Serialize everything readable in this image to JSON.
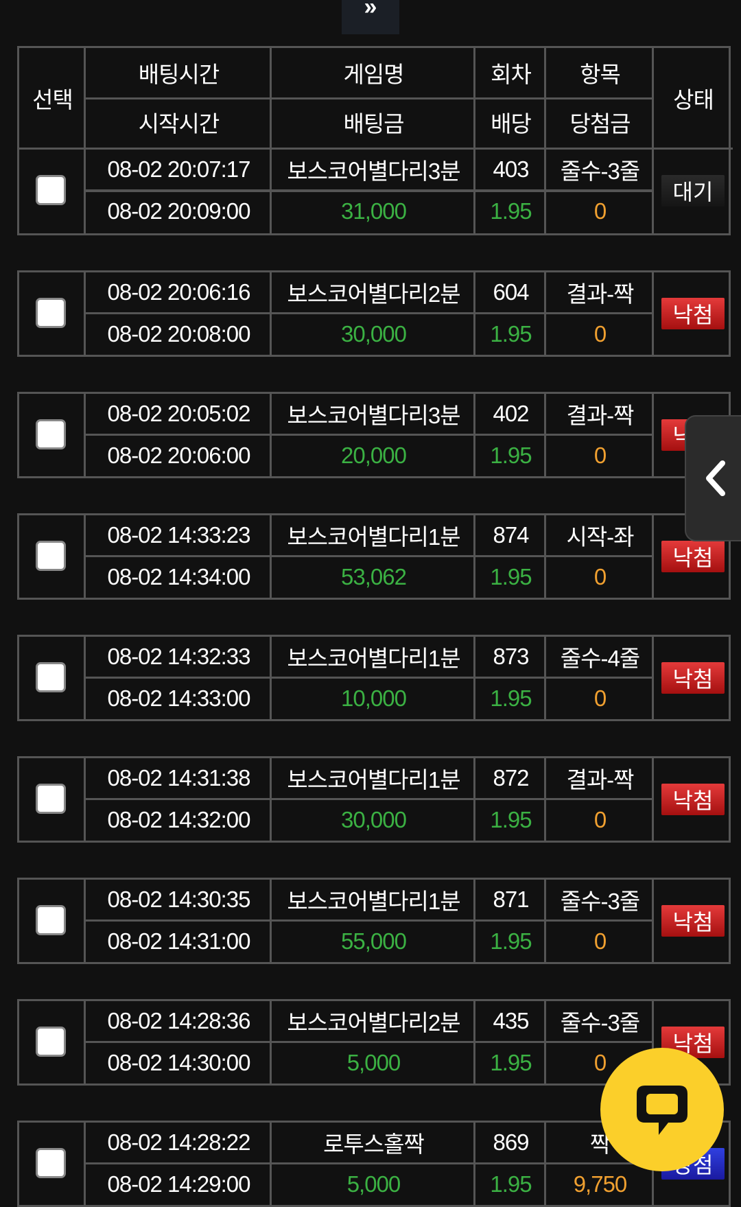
{
  "top_button": {
    "label": "»"
  },
  "header": {
    "select": "선택",
    "bet_time": "배팅시간",
    "start_time": "시작시간",
    "game_name": "게임명",
    "bet_amount": "배팅금",
    "round": "회차",
    "odds": "배당",
    "item": "항목",
    "winnings": "당첨금",
    "status": "상태"
  },
  "rows": [
    {
      "bet_time": "08-02 20:07:17",
      "start_time": "08-02 20:09:00",
      "game": "보스코어별다리3분",
      "amount": "31,000",
      "round": "403",
      "odds": "1.95",
      "item": "줄수-3줄",
      "win": "0",
      "status": "대기",
      "status_type": "wait"
    },
    {
      "bet_time": "08-02 20:06:16",
      "start_time": "08-02 20:08:00",
      "game": "보스코어별다리2분",
      "amount": "30,000",
      "round": "604",
      "odds": "1.95",
      "item": "결과-짝",
      "win": "0",
      "status": "낙첨",
      "status_type": "lose"
    },
    {
      "bet_time": "08-02 20:05:02",
      "start_time": "08-02 20:06:00",
      "game": "보스코어별다리3분",
      "amount": "20,000",
      "round": "402",
      "odds": "1.95",
      "item": "결과-짝",
      "win": "0",
      "status": "낙첨",
      "status_type": "lose"
    },
    {
      "bet_time": "08-02 14:33:23",
      "start_time": "08-02 14:34:00",
      "game": "보스코어별다리1분",
      "amount": "53,062",
      "round": "874",
      "odds": "1.95",
      "item": "시작-좌",
      "win": "0",
      "status": "낙첨",
      "status_type": "lose"
    },
    {
      "bet_time": "08-02 14:32:33",
      "start_time": "08-02 14:33:00",
      "game": "보스코어별다리1분",
      "amount": "10,000",
      "round": "873",
      "odds": "1.95",
      "item": "줄수-4줄",
      "win": "0",
      "status": "낙첨",
      "status_type": "lose"
    },
    {
      "bet_time": "08-02 14:31:38",
      "start_time": "08-02 14:32:00",
      "game": "보스코어별다리1분",
      "amount": "30,000",
      "round": "872",
      "odds": "1.95",
      "item": "결과-짝",
      "win": "0",
      "status": "낙첨",
      "status_type": "lose"
    },
    {
      "bet_time": "08-02 14:30:35",
      "start_time": "08-02 14:31:00",
      "game": "보스코어별다리1분",
      "amount": "55,000",
      "round": "871",
      "odds": "1.95",
      "item": "줄수-3줄",
      "win": "0",
      "status": "낙첨",
      "status_type": "lose"
    },
    {
      "bet_time": "08-02 14:28:36",
      "start_time": "08-02 14:30:00",
      "game": "보스코어별다리2분",
      "amount": "5,000",
      "round": "435",
      "odds": "1.95",
      "item": "줄수-3줄",
      "win": "0",
      "status": "낙첨",
      "status_type": "lose"
    },
    {
      "bet_time": "08-02 14:28:22",
      "start_time": "08-02 14:29:00",
      "game": "로투스홀짝",
      "amount": "5,000",
      "round": "869",
      "odds": "1.95",
      "item": "짝",
      "win": "9,750",
      "status": "당첨",
      "status_type": "win"
    }
  ],
  "colors": {
    "amount": "#3bb143",
    "winnings": "#f0a030",
    "lose_badge": "#d02020",
    "win_badge": "#2a30d0",
    "chat_button": "#fbcf2a"
  },
  "overlays": {
    "side_tab_icon": "chevron-left-icon",
    "chat_icon": "speech-bubble-icon"
  }
}
